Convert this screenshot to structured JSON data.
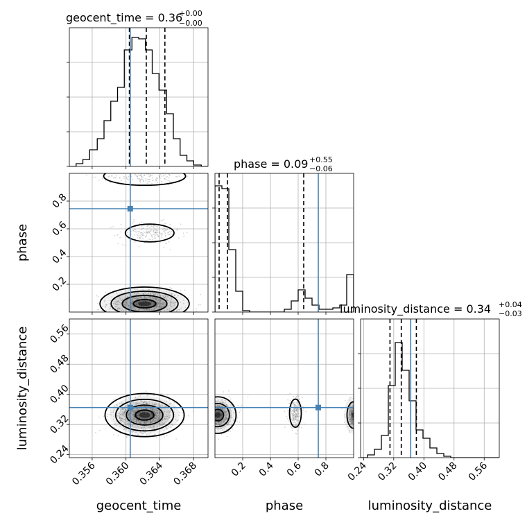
{
  "chart_data": {
    "type": "corner",
    "parameters": [
      "geocent_time",
      "phase",
      "luminosity_distance"
    ],
    "ranges": {
      "geocent_time": [
        0.3533,
        0.3697
      ],
      "phase": [
        0.0,
        1.0
      ],
      "luminosity_distance": [
        0.232,
        0.6
      ]
    },
    "truths": {
      "geocent_time": 0.3605,
      "phase": 0.745,
      "luminosity_distance": 0.365
    },
    "quantiles": {
      "geocent_time": [
        0.3604,
        0.3624,
        0.3646
      ],
      "phase": [
        0.03,
        0.09,
        0.64
      ],
      "luminosity_distance": [
        0.31,
        0.34,
        0.38
      ]
    },
    "titles": {
      "geocent_time": {
        "name": "geocent_time = 0.36",
        "plus": "+0.00",
        "minus": "−0.00"
      },
      "phase": {
        "name": "phase = 0.09",
        "plus": "+0.55",
        "minus": "−0.06"
      },
      "luminosity_distance": {
        "name": "luminosity_distance = 0.34",
        "plus": "+0.04",
        "minus": "−0.03"
      }
    },
    "ticks": {
      "geocent_time": {
        "values": [
          0.356,
          0.36,
          0.364,
          0.368
        ],
        "labels": [
          "0.356",
          "0.360",
          "0.364",
          "0.368"
        ]
      },
      "phase_x": {
        "values": [
          0.2,
          0.4,
          0.6,
          0.8
        ],
        "labels": [
          "0.2",
          "0.4",
          "0.6",
          "0.8"
        ]
      },
      "phase_y": {
        "values": [
          0.2,
          0.4,
          0.6,
          0.8
        ],
        "labels": [
          "0.2",
          "0.4",
          "0.6",
          "0.8"
        ]
      },
      "luminosity_distance": {
        "values": [
          0.24,
          0.32,
          0.4,
          0.48,
          0.56
        ],
        "labels": [
          "0.24",
          "0.32",
          "0.40",
          "0.48",
          "0.56"
        ]
      }
    },
    "histograms": {
      "geocent_time": {
        "edges": [
          0.3533,
          0.3541,
          0.3549,
          0.3557,
          0.3566,
          0.3574,
          0.3582,
          0.359,
          0.3598,
          0.3607,
          0.3615,
          0.3623,
          0.3631,
          0.3639,
          0.3648,
          0.3656,
          0.3664,
          0.3672,
          0.368,
          0.3689,
          0.3697
        ],
        "counts": [
          0,
          0.02,
          0.05,
          0.12,
          0.2,
          0.33,
          0.47,
          0.57,
          0.84,
          0.93,
          0.92,
          0.84,
          0.67,
          0.55,
          0.38,
          0.2,
          0.08,
          0.04,
          0.01,
          0
        ]
      },
      "phase": {
        "edges": [
          0.0,
          0.05,
          0.1,
          0.15,
          0.2,
          0.25,
          0.3,
          0.35,
          0.4,
          0.45,
          0.5,
          0.55,
          0.6,
          0.65,
          0.7,
          0.75,
          0.8,
          0.85,
          0.9,
          0.95,
          1.0
        ],
        "counts": [
          0.91,
          0.89,
          0.45,
          0.15,
          0.01,
          0,
          0,
          0,
          0,
          0,
          0.02,
          0.08,
          0.16,
          0.1,
          0.05,
          0.02,
          0.02,
          0.03,
          0.05,
          0.27
        ]
      },
      "luminosity_distance": {
        "edges": [
          0.232,
          0.2504,
          0.2688,
          0.2872,
          0.3056,
          0.324,
          0.3424,
          0.3608,
          0.3792,
          0.3976,
          0.416,
          0.4344,
          0.4528,
          0.4712,
          0.4896,
          0.508,
          0.5264,
          0.5448,
          0.5632,
          0.5816,
          0.6
        ],
        "counts": [
          0,
          0.02,
          0.06,
          0.16,
          0.52,
          0.83,
          0.63,
          0.41,
          0.2,
          0.14,
          0.07,
          0.03,
          0.01,
          0,
          0,
          0,
          0,
          0,
          0,
          0
        ]
      }
    },
    "grid": true,
    "colors": {
      "truth": "#4682b4",
      "hist": "#000000",
      "points": "#888888",
      "quantile": "#000000"
    }
  }
}
